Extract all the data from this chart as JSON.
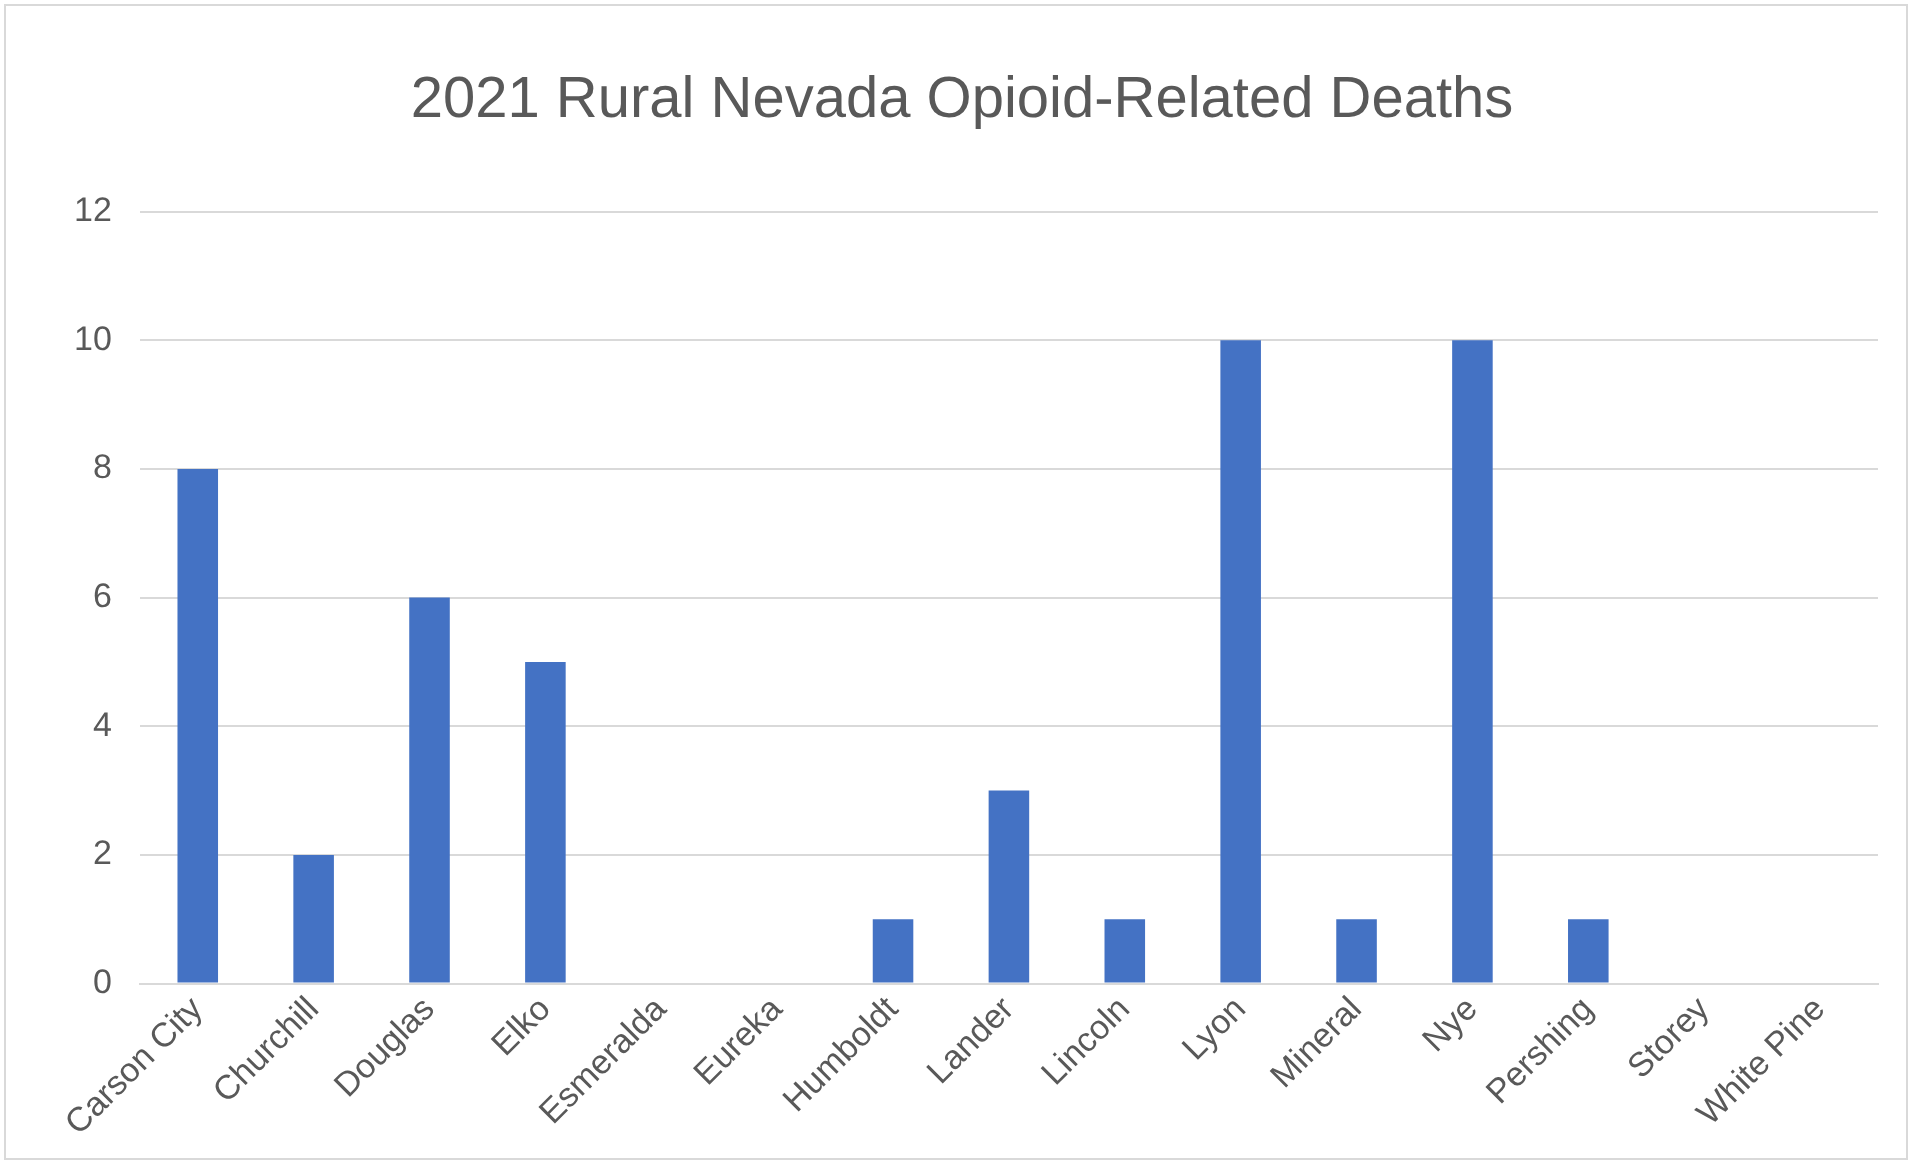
{
  "chart_data": {
    "type": "bar",
    "title": "2021 Rural Nevada Opioid-Related Deaths",
    "categories": [
      "Carson City",
      "Churchill",
      "Douglas",
      "Elko",
      "Esmeralda",
      "Eureka",
      "Humboldt",
      "Lander",
      "Lincoln",
      "Lyon",
      "Mineral",
      "Nye",
      "Pershing",
      "Storey",
      "White Pine"
    ],
    "values": [
      8,
      2,
      6,
      5,
      0,
      0,
      1,
      3,
      1,
      10,
      1,
      10,
      1,
      0,
      0
    ],
    "color": "#4472c4",
    "ylim": [
      0,
      12
    ],
    "yticks": [
      0,
      2,
      4,
      6,
      8,
      10,
      12
    ],
    "grid": "y",
    "legend": false
  }
}
